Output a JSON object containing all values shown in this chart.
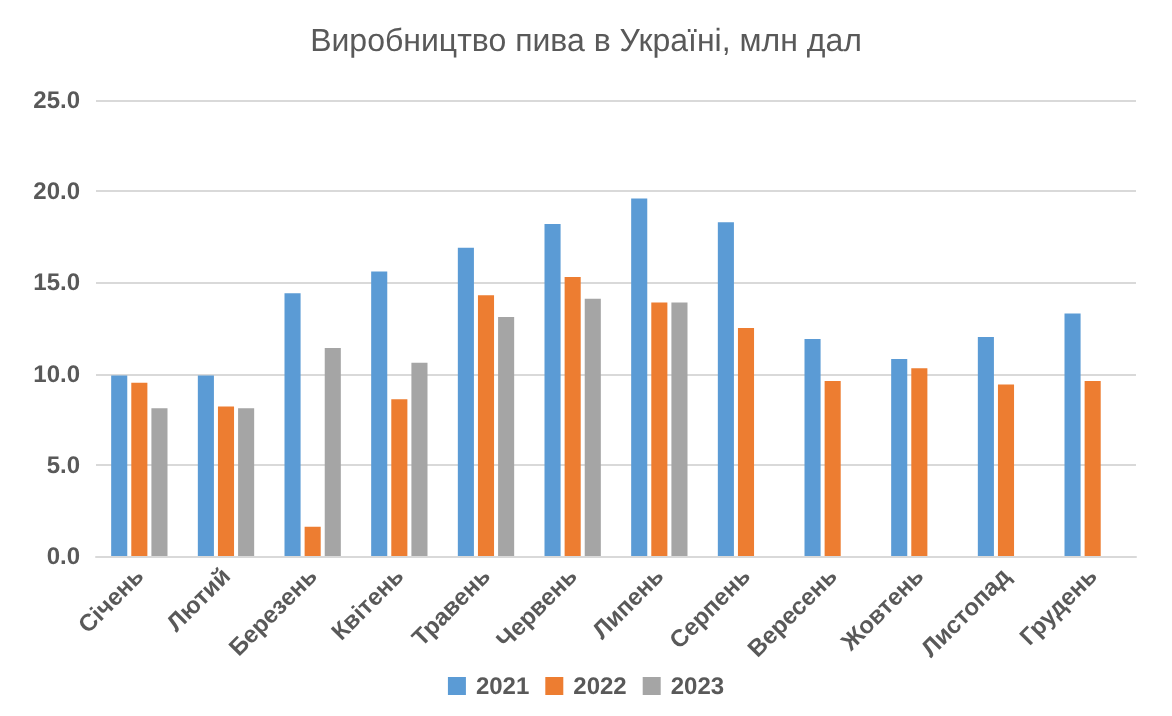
{
  "chart_data": {
    "type": "bar",
    "title": "Виробництво пива в Україні, млн дал",
    "categories": [
      "Січень",
      "Лютий",
      "Березень",
      "Квітень",
      "Травень",
      "Червень",
      "Липень",
      "Серпень",
      "Вересень",
      "Жовтень",
      "Листопад",
      "Грудень"
    ],
    "series": [
      {
        "name": "2021",
        "color": "#5b9bd5",
        "values": [
          9.9,
          9.9,
          14.4,
          15.6,
          16.9,
          18.2,
          19.6,
          18.3,
          11.9,
          10.8,
          12.0,
          13.3
        ]
      },
      {
        "name": "2022",
        "color": "#ed7d31",
        "values": [
          9.5,
          8.2,
          1.6,
          8.6,
          14.3,
          15.3,
          13.9,
          12.5,
          9.6,
          10.3,
          9.4,
          9.6
        ]
      },
      {
        "name": "2023",
        "color": "#a5a5a5",
        "values": [
          8.1,
          8.1,
          11.4,
          10.6,
          13.1,
          14.1,
          13.9,
          null,
          null,
          null,
          null,
          null
        ]
      }
    ],
    "ylim": [
      0,
      25
    ],
    "yticks": [
      {
        "value": 0,
        "label": "0.0"
      },
      {
        "value": 5,
        "label": "5.0"
      },
      {
        "value": 10,
        "label": "10.0"
      },
      {
        "value": 15,
        "label": "15.0"
      },
      {
        "value": 20,
        "label": "20.0"
      },
      {
        "value": 25,
        "label": "25.0"
      }
    ],
    "grid": "y",
    "legend": "bottom"
  }
}
